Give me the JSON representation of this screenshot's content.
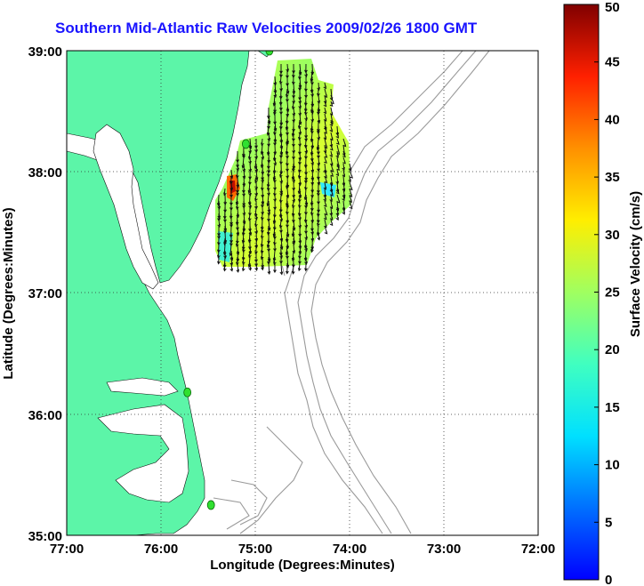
{
  "title": "Southern Mid-Atlantic Raw Velocities 2009/02/26 1800 GMT",
  "map": {
    "xlabel": "Longitude (Degrees:Minutes)",
    "ylabel": "Latitude (Degrees:Minutes)",
    "x_ticks": [
      "77:00",
      "76:00",
      "75:00",
      "74:00",
      "73:00",
      "72:00"
    ],
    "y_ticks": [
      "39:00",
      "38:00",
      "37:00",
      "36:00",
      "35:00"
    ],
    "lon_range": [
      -77,
      -72
    ],
    "lat_range": [
      35,
      39
    ],
    "grid": "dotted",
    "land_color": "#5cf5a8",
    "contour_color": "#9a9a9a",
    "station_color": "#30e030"
  },
  "colorbar": {
    "label": "Surface Velocity (cm/s)",
    "ticks": [
      "0",
      "5",
      "10",
      "15",
      "20",
      "25",
      "30",
      "35",
      "40",
      "45",
      "50"
    ],
    "range": [
      0,
      50
    ],
    "colormap": "jet"
  },
  "stations": [
    {
      "lon": -74.85,
      "lat": 39.0
    },
    {
      "lon": -75.1,
      "lat": 38.23
    },
    {
      "lon": -75.72,
      "lat": 36.18
    },
    {
      "lon": -75.47,
      "lat": 35.25
    }
  ]
}
